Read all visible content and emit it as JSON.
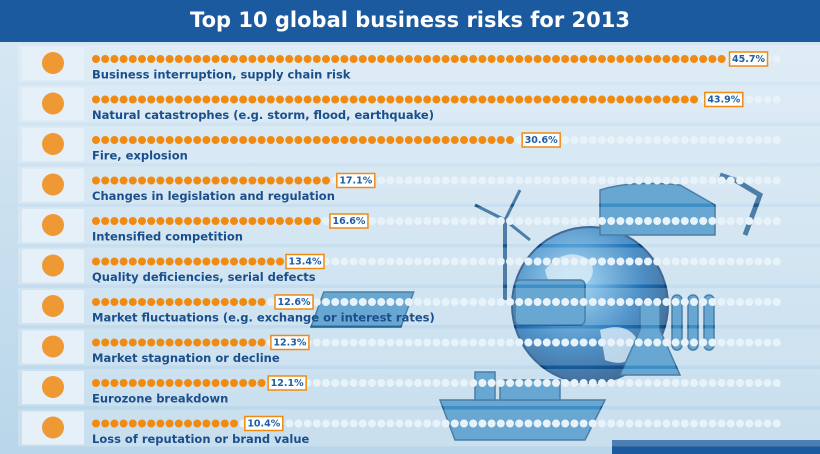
{
  "chart_data": {
    "type": "bar",
    "title": "Top 10 global business risks for 2013",
    "categories": [
      "Business interruption, supply chain risk",
      "Natural catastrophes (e.g. storm, flood, earthquake)",
      "Fire, explosion",
      "Changes in legislation and regulation",
      "Intensified competition",
      "Quality deficiencies, serial defects",
      "Market fluctuations (e.g. exchange or interest rates)",
      "Market stagnation or decline",
      "Eurozone breakdown",
      "Loss of reputation or brand value"
    ],
    "values": [
      45.7,
      43.9,
      30.6,
      17.1,
      16.6,
      13.4,
      12.6,
      12.3,
      12.1,
      10.4
    ],
    "value_labels": [
      "45.7%",
      "43.9%",
      "30.6%",
      "17.1%",
      "16.6%",
      "13.4%",
      "12.6%",
      "12.3%",
      "12.1%",
      "10.4%"
    ],
    "color": "#ef8a12"
  }
}
